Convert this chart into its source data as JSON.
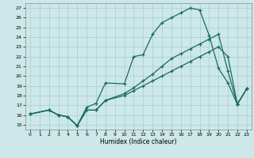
{
  "xlabel": "Humidex (Indice chaleur)",
  "bg_color": "#cce8e8",
  "grid_color": "#aacccc",
  "line_color": "#1a6b5a",
  "xlim": [
    -0.5,
    23.5
  ],
  "ylim": [
    14.5,
    27.5
  ],
  "xticks": [
    0,
    1,
    2,
    3,
    4,
    5,
    6,
    7,
    8,
    9,
    10,
    11,
    12,
    13,
    14,
    15,
    16,
    17,
    18,
    19,
    20,
    21,
    22,
    23
  ],
  "yticks": [
    15,
    16,
    17,
    18,
    19,
    20,
    21,
    22,
    23,
    24,
    25,
    26,
    27
  ],
  "line1_x": [
    0,
    2,
    3,
    4,
    5,
    6,
    7,
    8,
    10,
    11,
    12,
    13,
    14,
    15,
    16,
    17,
    18,
    19,
    20,
    21,
    22,
    23
  ],
  "line1_y": [
    16.1,
    16.5,
    16.0,
    15.8,
    14.9,
    16.8,
    17.2,
    19.3,
    19.2,
    22.0,
    22.2,
    24.3,
    25.5,
    26.0,
    26.5,
    27.0,
    26.8,
    24.2,
    20.8,
    19.3,
    17.1,
    18.7
  ],
  "line2_x": [
    0,
    2,
    3,
    4,
    5,
    6,
    7,
    8,
    10,
    11,
    12,
    13,
    14,
    15,
    16,
    17,
    18,
    19,
    20,
    21,
    22,
    23
  ],
  "line2_y": [
    16.1,
    16.5,
    16.0,
    15.8,
    14.9,
    16.5,
    16.5,
    17.5,
    18.2,
    18.8,
    19.5,
    20.2,
    21.0,
    21.8,
    22.3,
    22.8,
    23.3,
    23.8,
    24.3,
    20.5,
    17.1,
    18.7
  ],
  "line3_x": [
    0,
    2,
    3,
    4,
    5,
    6,
    7,
    8,
    10,
    11,
    12,
    13,
    14,
    15,
    16,
    17,
    18,
    19,
    20,
    21,
    22,
    23
  ],
  "line3_y": [
    16.1,
    16.5,
    16.0,
    15.8,
    14.9,
    16.5,
    16.5,
    17.5,
    18.0,
    18.5,
    19.0,
    19.5,
    20.0,
    20.5,
    21.0,
    21.5,
    22.0,
    22.5,
    23.0,
    22.0,
    17.1,
    18.7
  ]
}
